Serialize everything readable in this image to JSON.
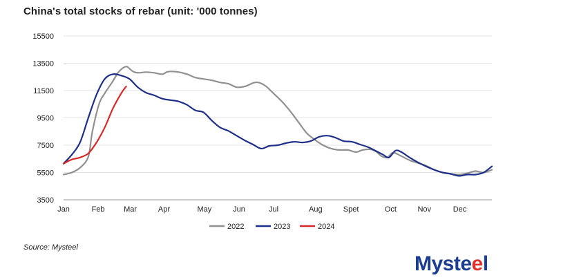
{
  "chart_data": {
    "type": "line",
    "title": "China's total stocks of rebar (unit: '000 tonnes)",
    "xlabel": "",
    "ylabel": "",
    "ylim": [
      3500,
      15500
    ],
    "yticks": [
      3500,
      5500,
      7500,
      9500,
      11500,
      13500,
      15500
    ],
    "ytick_labels": [
      "3500",
      "5500",
      "7500",
      "9500",
      "11500",
      "13500",
      "15500"
    ],
    "xlim": [
      0,
      52
    ],
    "xticks": [
      0,
      4.2,
      8.1,
      12.2,
      17.1,
      21.3,
      25.5,
      30.6,
      34.9,
      39.7,
      43.8,
      48.1
    ],
    "xtick_labels": [
      "Jan",
      "Feb",
      "Mar",
      "Apr",
      "May",
      "Jun",
      "Jul",
      "Aug",
      "Spet",
      "Oct",
      "Nov",
      "Dec"
    ],
    "grid": "horizontal",
    "legend_position": "bottom",
    "series": [
      {
        "name": "2022",
        "color": "#909090",
        "x": [
          0,
          1,
          2,
          3,
          3.5,
          4.3,
          5,
          6,
          6.6,
          7.2,
          7.7,
          8.2,
          8.6,
          9.2,
          10,
          11,
          12,
          12.5,
          13,
          14,
          15,
          16,
          17,
          18,
          19,
          20,
          21,
          22,
          23,
          23.6,
          24.5,
          25.3,
          26.5,
          27.5,
          28.5,
          29.5,
          30.5,
          31.5,
          32.5,
          33.5,
          34.5,
          35.5,
          36.3,
          37.2,
          37.9,
          38.6,
          39.3,
          40,
          41,
          42,
          43,
          44,
          45,
          46,
          47,
          48,
          49,
          50,
          51,
          52
        ],
        "values": [
          5350,
          5500,
          5850,
          6650,
          8500,
          10500,
          11300,
          12200,
          12800,
          13150,
          13250,
          13000,
          12850,
          12800,
          12850,
          12800,
          12700,
          12850,
          12900,
          12850,
          12700,
          12450,
          12350,
          12250,
          12100,
          12000,
          11750,
          11800,
          12050,
          12100,
          11850,
          11400,
          10700,
          10000,
          9200,
          8400,
          7900,
          7500,
          7250,
          7150,
          7150,
          7000,
          7150,
          7200,
          7050,
          6700,
          6600,
          6950,
          6700,
          6400,
          6200,
          6000,
          5700,
          5500,
          5400,
          5350,
          5450,
          5600,
          5500,
          5700
        ]
      },
      {
        "name": "2023",
        "color": "#1e2f8a",
        "x": [
          0,
          1,
          2,
          3,
          4,
          5,
          6,
          7,
          8,
          9,
          10,
          11,
          12,
          13,
          14,
          15,
          16,
          17,
          18,
          19,
          20,
          21,
          22,
          23,
          24,
          25,
          26,
          27,
          28,
          29,
          30,
          31,
          32,
          33,
          34,
          35,
          36,
          37,
          38,
          38.8,
          39.5,
          40.3,
          41,
          42,
          43,
          44,
          45,
          46,
          47,
          48,
          49,
          50,
          51,
          52
        ],
        "values": [
          6150,
          6800,
          7700,
          9500,
          11200,
          12350,
          12700,
          12600,
          12350,
          11750,
          11350,
          11150,
          10900,
          10800,
          10700,
          10450,
          10050,
          9900,
          9300,
          8800,
          8550,
          8200,
          7850,
          7550,
          7250,
          7450,
          7500,
          7650,
          7750,
          7700,
          7800,
          8100,
          8200,
          8050,
          7800,
          7750,
          7550,
          7350,
          7050,
          6800,
          6600,
          7100,
          7000,
          6600,
          6250,
          5950,
          5700,
          5500,
          5400,
          5250,
          5350,
          5350,
          5500,
          5950
        ]
      },
      {
        "name": "2024",
        "color": "#d62828",
        "x": [
          0,
          1,
          2,
          3,
          4,
          5,
          6,
          7,
          7.6
        ],
        "values": [
          6150,
          6450,
          6600,
          6900,
          7700,
          8800,
          10200,
          11300,
          11800
        ]
      }
    ]
  },
  "source": "Source: Mysteel",
  "logo": {
    "text_before": "Myst",
    "text_after": "l",
    "brand_color": "#1a3c91",
    "accent_color": "#e0302e"
  }
}
